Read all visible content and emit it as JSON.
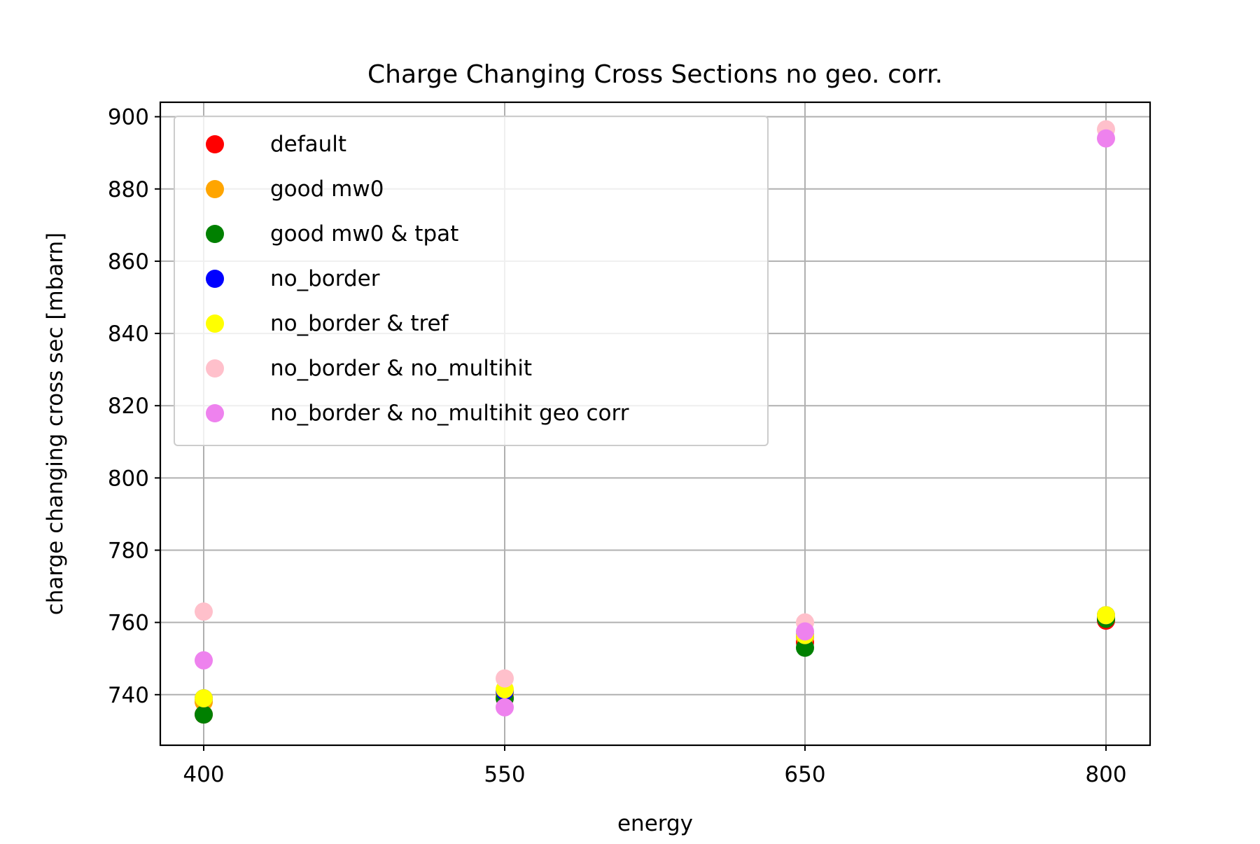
{
  "chart_data": {
    "type": "scatter",
    "title": "Charge Changing Cross Sections no geo. corr.",
    "xlabel": "energy",
    "ylabel": "charge changing cross sec [mbarn]",
    "categories": [
      "400",
      "550",
      "650",
      "800"
    ],
    "ylim": [
      726,
      904
    ],
    "yticks": [
      740,
      760,
      780,
      800,
      820,
      840,
      860,
      880,
      900
    ],
    "grid": true,
    "legend_position": "top-left",
    "series": [
      {
        "name": "default",
        "color": "#ff0000",
        "values": [
          734.5,
          739.0,
          754.5,
          760.5
        ]
      },
      {
        "name": "good mw0",
        "color": "#ffa500",
        "values": [
          738.0,
          740.0,
          756.0,
          761.5
        ]
      },
      {
        "name": "good mw0 & tpat",
        "color": "#008000",
        "values": [
          734.5,
          739.0,
          753.0,
          761.0
        ]
      },
      {
        "name": "no_border",
        "color": "#0000ff",
        "values": [
          739.0,
          741.0,
          756.5,
          762.0
        ]
      },
      {
        "name": "no_border & tref",
        "color": "#ffff00",
        "values": [
          739.0,
          741.5,
          756.5,
          762.0
        ]
      },
      {
        "name": "no_border & no_multihit",
        "color": "#ffc0cb",
        "values": [
          763.0,
          744.5,
          760.0,
          896.5
        ]
      },
      {
        "name": "no_border & no_multihit geo corr",
        "color": "#ee82ee",
        "values": [
          749.5,
          736.5,
          757.5,
          894.0
        ]
      }
    ]
  }
}
